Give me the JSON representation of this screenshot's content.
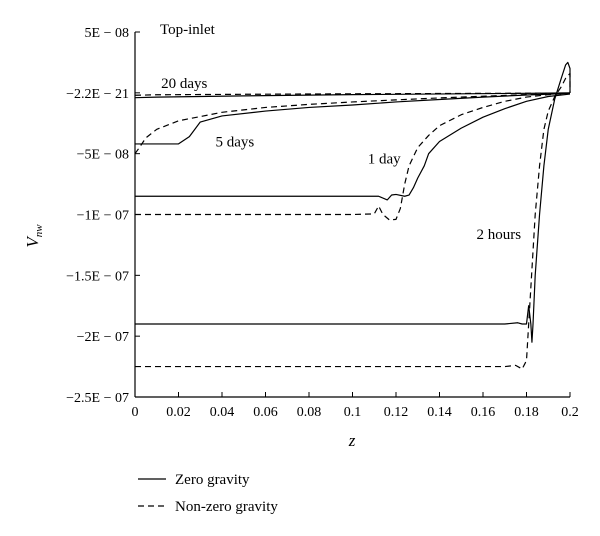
{
  "chart_data": {
    "type": "line",
    "title": "",
    "panel_label": "Top-inlet",
    "xlabel": "z",
    "ylabel_main": "V",
    "ylabel_sub": "nw",
    "xlim": [
      0,
      0.2
    ],
    "ylim": [
      -2.5e-07,
      5e-08
    ],
    "x_ticks": [
      {
        "value": 0,
        "label": "0"
      },
      {
        "value": 0.02,
        "label": "0.02"
      },
      {
        "value": 0.04,
        "label": "0.04"
      },
      {
        "value": 0.06,
        "label": "0.06"
      },
      {
        "value": 0.08,
        "label": "0.08"
      },
      {
        "value": 0.1,
        "label": "0.1"
      },
      {
        "value": 0.12,
        "label": "0.12"
      },
      {
        "value": 0.14,
        "label": "0.14"
      },
      {
        "value": 0.16,
        "label": "0.16"
      },
      {
        "value": 0.18,
        "label": "0.18"
      },
      {
        "value": 0.2,
        "label": "0.2"
      }
    ],
    "y_ticks": [
      {
        "value": 5e-08,
        "label": "5E − 08"
      },
      {
        "value": 0,
        "label": "−2.2E − 21"
      },
      {
        "value": -5e-08,
        "label": "−5E − 08"
      },
      {
        "value": -1e-07,
        "label": "−1E − 07"
      },
      {
        "value": -1.5e-07,
        "label": "−1.5E − 07"
      },
      {
        "value": -2e-07,
        "label": "−2E − 07"
      },
      {
        "value": -2.5e-07,
        "label": "−2.5E − 07"
      }
    ],
    "grid": false,
    "legend_position": "bottom-left",
    "legend": [
      {
        "label": "Zero gravity",
        "dash": "solid"
      },
      {
        "label": "Non-zero gravity",
        "dash": "dashed"
      }
    ],
    "annotations": [
      {
        "text": "20 days",
        "x": 0.012,
        "y": 4e-09
      },
      {
        "text": "5 days",
        "x": 0.037,
        "y": -4.4e-08
      },
      {
        "text": "1 day",
        "x": 0.107,
        "y": -5.8e-08
      },
      {
        "text": "2 hours",
        "x": 0.157,
        "y": -1.2e-07
      }
    ],
    "series": [
      {
        "time": "20 days",
        "gravity": "zero",
        "dash": "solid",
        "points": [
          [
            0,
            -4e-09
          ],
          [
            0.01,
            -3.5e-09
          ],
          [
            0.05,
            -2.5e-09
          ],
          [
            0.1,
            -1.5e-09
          ],
          [
            0.15,
            -8e-10
          ],
          [
            0.18,
            -4e-10
          ],
          [
            0.2,
            0
          ]
        ]
      },
      {
        "time": "20 days",
        "gravity": "non-zero",
        "dash": "dashed",
        "points": [
          [
            0,
            -2e-09
          ],
          [
            0.01,
            -1.6e-09
          ],
          [
            0.05,
            -1.2e-09
          ],
          [
            0.1,
            -8e-10
          ],
          [
            0.15,
            -5e-10
          ],
          [
            0.2,
            -2e-10
          ]
        ]
      },
      {
        "time": "5 days",
        "gravity": "zero",
        "dash": "solid",
        "points": [
          [
            0,
            -4.2e-08
          ],
          [
            0.02,
            -4.2e-08
          ],
          [
            0.025,
            -3.6e-08
          ],
          [
            0.03,
            -2.4e-08
          ],
          [
            0.04,
            -1.9e-08
          ],
          [
            0.06,
            -1.5e-08
          ],
          [
            0.08,
            -1.2e-08
          ],
          [
            0.1,
            -1e-08
          ],
          [
            0.12,
            -7.5e-09
          ],
          [
            0.14,
            -5.5e-09
          ],
          [
            0.16,
            -3.5e-09
          ],
          [
            0.18,
            -1.8e-09
          ],
          [
            0.2,
            -5e-10
          ]
        ]
      },
      {
        "time": "5 days",
        "gravity": "non-zero",
        "dash": "dashed",
        "points": [
          [
            0,
            -5e-08
          ],
          [
            0.002,
            -4.5e-08
          ],
          [
            0.005,
            -3.7e-08
          ],
          [
            0.01,
            -3e-08
          ],
          [
            0.02,
            -2.3e-08
          ],
          [
            0.04,
            -1.6e-08
          ],
          [
            0.06,
            -1.2e-08
          ],
          [
            0.08,
            -9.5e-09
          ],
          [
            0.1,
            -7.5e-09
          ],
          [
            0.12,
            -5.8e-09
          ],
          [
            0.14,
            -4.2e-09
          ],
          [
            0.16,
            -2.8e-09
          ],
          [
            0.18,
            -1.4e-09
          ],
          [
            0.2,
            -3e-10
          ]
        ]
      },
      {
        "time": "1 day",
        "gravity": "zero",
        "dash": "solid",
        "points": [
          [
            0,
            -8.5e-08
          ],
          [
            0.05,
            -8.5e-08
          ],
          [
            0.1,
            -8.5e-08
          ],
          [
            0.112,
            -8.5e-08
          ],
          [
            0.116,
            -8.8e-08
          ],
          [
            0.118,
            -8.4e-08
          ],
          [
            0.12,
            -8.35e-08
          ],
          [
            0.124,
            -8.5e-08
          ],
          [
            0.126,
            -8.4e-08
          ],
          [
            0.128,
            -7.8e-08
          ],
          [
            0.13,
            -7e-08
          ],
          [
            0.133,
            -6e-08
          ],
          [
            0.135,
            -5e-08
          ],
          [
            0.14,
            -4e-08
          ],
          [
            0.15,
            -2.9e-08
          ],
          [
            0.16,
            -2e-08
          ],
          [
            0.17,
            -1.3e-08
          ],
          [
            0.18,
            -7e-09
          ],
          [
            0.19,
            -3e-09
          ],
          [
            0.2,
            -1e-09
          ]
        ]
      },
      {
        "time": "1 day",
        "gravity": "non-zero",
        "dash": "dashed",
        "points": [
          [
            0,
            -1e-07
          ],
          [
            0.05,
            -1e-07
          ],
          [
            0.1,
            -1e-07
          ],
          [
            0.11,
            -9.95e-08
          ],
          [
            0.112,
            -9.3e-08
          ],
          [
            0.114,
            -1e-07
          ],
          [
            0.117,
            -1.045e-07
          ],
          [
            0.12,
            -1.04e-07
          ],
          [
            0.122,
            -9.5e-08
          ],
          [
            0.124,
            -7.5e-08
          ],
          [
            0.126,
            -6e-08
          ],
          [
            0.13,
            -4.5e-08
          ],
          [
            0.135,
            -3.5e-08
          ],
          [
            0.14,
            -2.7e-08
          ],
          [
            0.15,
            -1.8e-08
          ],
          [
            0.16,
            -1.2e-08
          ],
          [
            0.17,
            -7e-09
          ],
          [
            0.18,
            -3.5e-09
          ],
          [
            0.19,
            -1.5e-09
          ],
          [
            0.2,
            -5e-10
          ]
        ]
      },
      {
        "time": "2 hours",
        "gravity": "zero",
        "dash": "solid",
        "points": [
          [
            0,
            -1.9e-07
          ],
          [
            0.1,
            -1.9e-07
          ],
          [
            0.17,
            -1.9e-07
          ],
          [
            0.176,
            -1.89e-07
          ],
          [
            0.178,
            -1.9e-07
          ],
          [
            0.18,
            -1.9e-07
          ],
          [
            0.181,
            -1.75e-07
          ],
          [
            0.182,
            -1.9e-07
          ],
          [
            0.1825,
            -2.05e-07
          ],
          [
            0.183,
            -1.9e-07
          ],
          [
            0.184,
            -1.5e-07
          ],
          [
            0.186,
            -1e-07
          ],
          [
            0.188,
            -6e-08
          ],
          [
            0.19,
            -3e-08
          ],
          [
            0.193,
            -5e-09
          ],
          [
            0.196,
            1.2e-08
          ],
          [
            0.198,
            2.3e-08
          ],
          [
            0.199,
            2.5e-08
          ],
          [
            0.2,
            2e-08
          ],
          [
            0.2,
            0
          ]
        ]
      },
      {
        "time": "2 hours",
        "gravity": "non-zero",
        "dash": "dashed",
        "points": [
          [
            0,
            -2.25e-07
          ],
          [
            0.1,
            -2.25e-07
          ],
          [
            0.17,
            -2.25e-07
          ],
          [
            0.175,
            -2.24e-07
          ],
          [
            0.178,
            -2.27e-07
          ],
          [
            0.18,
            -2.2e-07
          ],
          [
            0.182,
            -1.6e-07
          ],
          [
            0.184,
            -1e-07
          ],
          [
            0.186,
            -6e-08
          ],
          [
            0.188,
            -3e-08
          ],
          [
            0.19,
            -1.5e-08
          ],
          [
            0.193,
            -3e-09
          ],
          [
            0.196,
            5e-09
          ],
          [
            0.198,
            1.2e-08
          ],
          [
            0.2,
            1.6e-08
          ],
          [
            0.2,
            0
          ]
        ]
      }
    ]
  }
}
